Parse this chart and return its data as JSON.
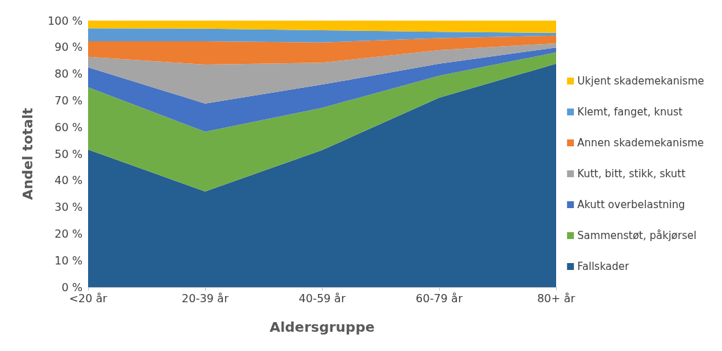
{
  "chart_data": {
    "type": "area",
    "stacked": true,
    "xlabel": "Aldersgruppe",
    "ylabel": "Andel totalt",
    "categories": [
      "<20 år",
      "20-39 år",
      "40-59 år",
      "60-79 år",
      "80+ år"
    ],
    "ylim": [
      0,
      100
    ],
    "yticks": [
      {
        "value": 0,
        "label": "0 %"
      },
      {
        "value": 10,
        "label": "10 %"
      },
      {
        "value": 20,
        "label": "20 %"
      },
      {
        "value": 30,
        "label": "30 %"
      },
      {
        "value": 40,
        "label": "40 %"
      },
      {
        "value": 50,
        "label": "50 %"
      },
      {
        "value": 60,
        "label": "60 %"
      },
      {
        "value": 70,
        "label": "70 %"
      },
      {
        "value": 80,
        "label": "80 %"
      },
      {
        "value": 90,
        "label": "90 %"
      },
      {
        "value": 100,
        "label": "100 %"
      }
    ],
    "grid": false,
    "legend": "right",
    "series": [
      {
        "name": "Fallskader",
        "color": "#255e91",
        "values": [
          51.6,
          35.9,
          51.4,
          71.1,
          83.8
        ]
      },
      {
        "name": "Sammenstøt, påkjørsel",
        "color": "#70ad47",
        "values": [
          23.4,
          22.4,
          15.9,
          8.2,
          4.3
        ]
      },
      {
        "name": "Akutt overbelastning",
        "color": "#4472c4",
        "values": [
          7.5,
          10.6,
          8.7,
          4.5,
          1.8
        ]
      },
      {
        "name": "Kutt, bitt, stikk, skutt",
        "color": "#a5a5a5",
        "values": [
          3.9,
          14.6,
          8.2,
          5.1,
          1.6
        ]
      },
      {
        "name": "Annen skademekanisme",
        "color": "#ed7d31",
        "values": [
          5.9,
          8.8,
          7.6,
          4.5,
          2.9
        ]
      },
      {
        "name": "Klemt, fanget, knust",
        "color": "#5b9bd5",
        "values": [
          4.8,
          4.7,
          4.6,
          2.4,
          1.0
        ]
      },
      {
        "name": "Ukjent skademekanisme",
        "color": "#ffc000",
        "values": [
          2.9,
          3.0,
          3.6,
          4.2,
          4.6
        ]
      }
    ]
  }
}
